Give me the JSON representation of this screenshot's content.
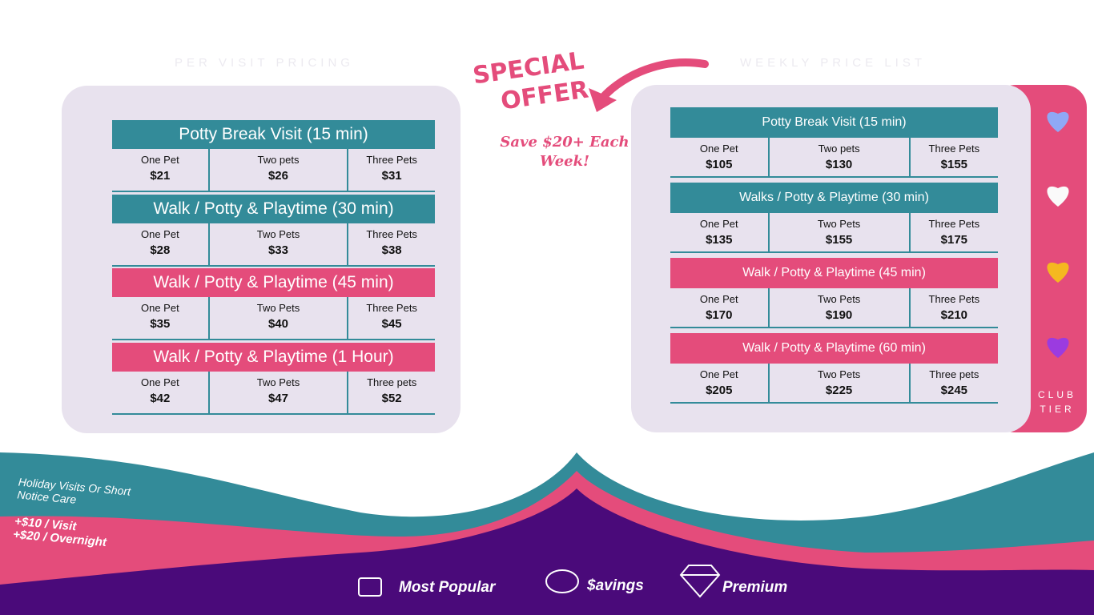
{
  "left": {
    "subtitle": "PER VISIT PRICING",
    "sections": [
      {
        "title": "Potty Break Visit (15 min)",
        "color": "#338b99",
        "options": [
          {
            "label": "One Pet",
            "price": "$21"
          },
          {
            "label": "Two pets",
            "price": "$26"
          },
          {
            "label": "Three Pets",
            "price": "$31"
          }
        ]
      },
      {
        "title": "Walk / Potty & Playtime (30 min)",
        "color": "#338b99",
        "options": [
          {
            "label": "One Pet",
            "price": "$28"
          },
          {
            "label": "Two Pets",
            "price": "$33"
          },
          {
            "label": "Three Pets",
            "price": "$38"
          }
        ]
      },
      {
        "title": "Walk / Potty & Playtime (45 min)",
        "color": "#e44c7b",
        "options": [
          {
            "label": "One Pet",
            "price": "$35"
          },
          {
            "label": "Two Pets",
            "price": "$40"
          },
          {
            "label": "Three Pets",
            "price": "$45"
          }
        ]
      },
      {
        "title": "Walk / Potty & Playtime (1 Hour)",
        "color": "#e44c7b",
        "options": [
          {
            "label": "One Pet",
            "price": "$42"
          },
          {
            "label": "Two Pets",
            "price": "$47"
          },
          {
            "label": "Three pets",
            "price": "$52"
          }
        ]
      }
    ]
  },
  "right": {
    "subtitle": "WEEKLY PRICE LIST",
    "sections": [
      {
        "title": "Potty Break Visit (15 min)",
        "color": "#338b99",
        "options": [
          {
            "label": "One Pet",
            "price": "$105"
          },
          {
            "label": "Two pets",
            "price": "$130"
          },
          {
            "label": "Three Pets",
            "price": "$155"
          }
        ]
      },
      {
        "title": "Walks / Potty & Playtime (30 min)",
        "color": "#338b99",
        "options": [
          {
            "label": "One Pet",
            "price": "$135"
          },
          {
            "label": "Two Pets",
            "price": "$155"
          },
          {
            "label": "Three Pets",
            "price": "$175"
          }
        ]
      },
      {
        "title": "Walk / Potty & Playtime (45 min)",
        "color": "#e44c7b",
        "options": [
          {
            "label": "One Pet",
            "price": "$170"
          },
          {
            "label": "Two Pets",
            "price": "$190"
          },
          {
            "label": "Three Pets",
            "price": "$210"
          }
        ]
      },
      {
        "title": "Walk / Potty & Playtime (60 min)",
        "color": "#e44c7b",
        "options": [
          {
            "label": "One Pet",
            "price": "$205"
          },
          {
            "label": "Two Pets",
            "price": "$225"
          },
          {
            "label": "Three pets",
            "price": "$245"
          }
        ]
      }
    ]
  },
  "special_offer": {
    "line1": "SPECIAL",
    "line2": "OFFER",
    "note": "Save $20+ Each Week!"
  },
  "club_tier": "CLUB TIER",
  "holiday": {
    "title": "Holiday Visits Or Short Notice Care",
    "visit": "+$10 / Visit",
    "overnight": "+$20 / Overnight"
  },
  "legend": [
    "Most Popular",
    "$avings",
    "Premium"
  ]
}
